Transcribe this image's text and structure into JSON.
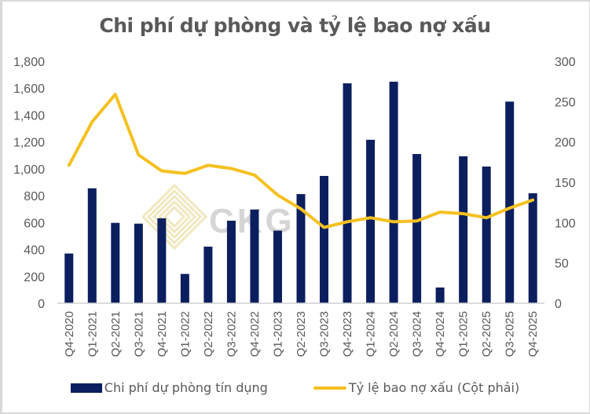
{
  "chart_data": {
    "type": "bar+line",
    "title": "Chi phí dự phòng và tỷ lệ bao nợ xấu",
    "categories": [
      "Q4-2020",
      "Q1-2021",
      "Q2-2021",
      "Q3-2021",
      "Q4-2021",
      "Q1-2022",
      "Q2-2022",
      "Q3-2022",
      "Q4-2022",
      "Q1-2023",
      "Q2-2023",
      "Q3-2023",
      "Q4-2023",
      "Q1-2024",
      "Q2-2024",
      "Q3-2024",
      "Q4-2024",
      "Q1-2025",
      "Q2-2025",
      "Q3-2025",
      "Q4-2025"
    ],
    "series": [
      {
        "name": "Chi phí dự phòng tín dụng",
        "type": "bar",
        "axis": "left",
        "color": "#0b1f5e",
        "values": [
          370,
          855,
          598,
          592,
          632,
          218,
          421,
          614,
          697,
          540,
          812,
          947,
          1636,
          1216,
          1648,
          1110,
          117,
          1093,
          1017,
          1500,
          818
        ]
      },
      {
        "name": "Tỷ lệ bao nợ xấu (Cột phải)",
        "type": "line",
        "axis": "right",
        "color": "#f5c121",
        "values": [
          171,
          225,
          259,
          184,
          164,
          161,
          171,
          167,
          159,
          134,
          117,
          94,
          101,
          106,
          101,
          102,
          113,
          111,
          106,
          118,
          128
        ]
      }
    ],
    "y_left": {
      "min": 0,
      "max": 1800,
      "step": 200,
      "ticks": [
        "0",
        "200",
        "400",
        "600",
        "800",
        "1,000",
        "1,200",
        "1,400",
        "1,600",
        "1,800"
      ]
    },
    "y_right": {
      "min": 0,
      "max": 300,
      "step": 50,
      "ticks": [
        "0",
        "50",
        "100",
        "150",
        "200",
        "250",
        "300"
      ]
    },
    "xlabel": "",
    "ylabel_left": "",
    "ylabel_right": "",
    "grid": false,
    "legend_position": "bottom",
    "watermark": "CKG"
  },
  "legend": {
    "bar_label": "Chi phí dự phòng tín dụng",
    "line_label": "Tỷ lệ bao nợ xấu (Cột phải)"
  }
}
